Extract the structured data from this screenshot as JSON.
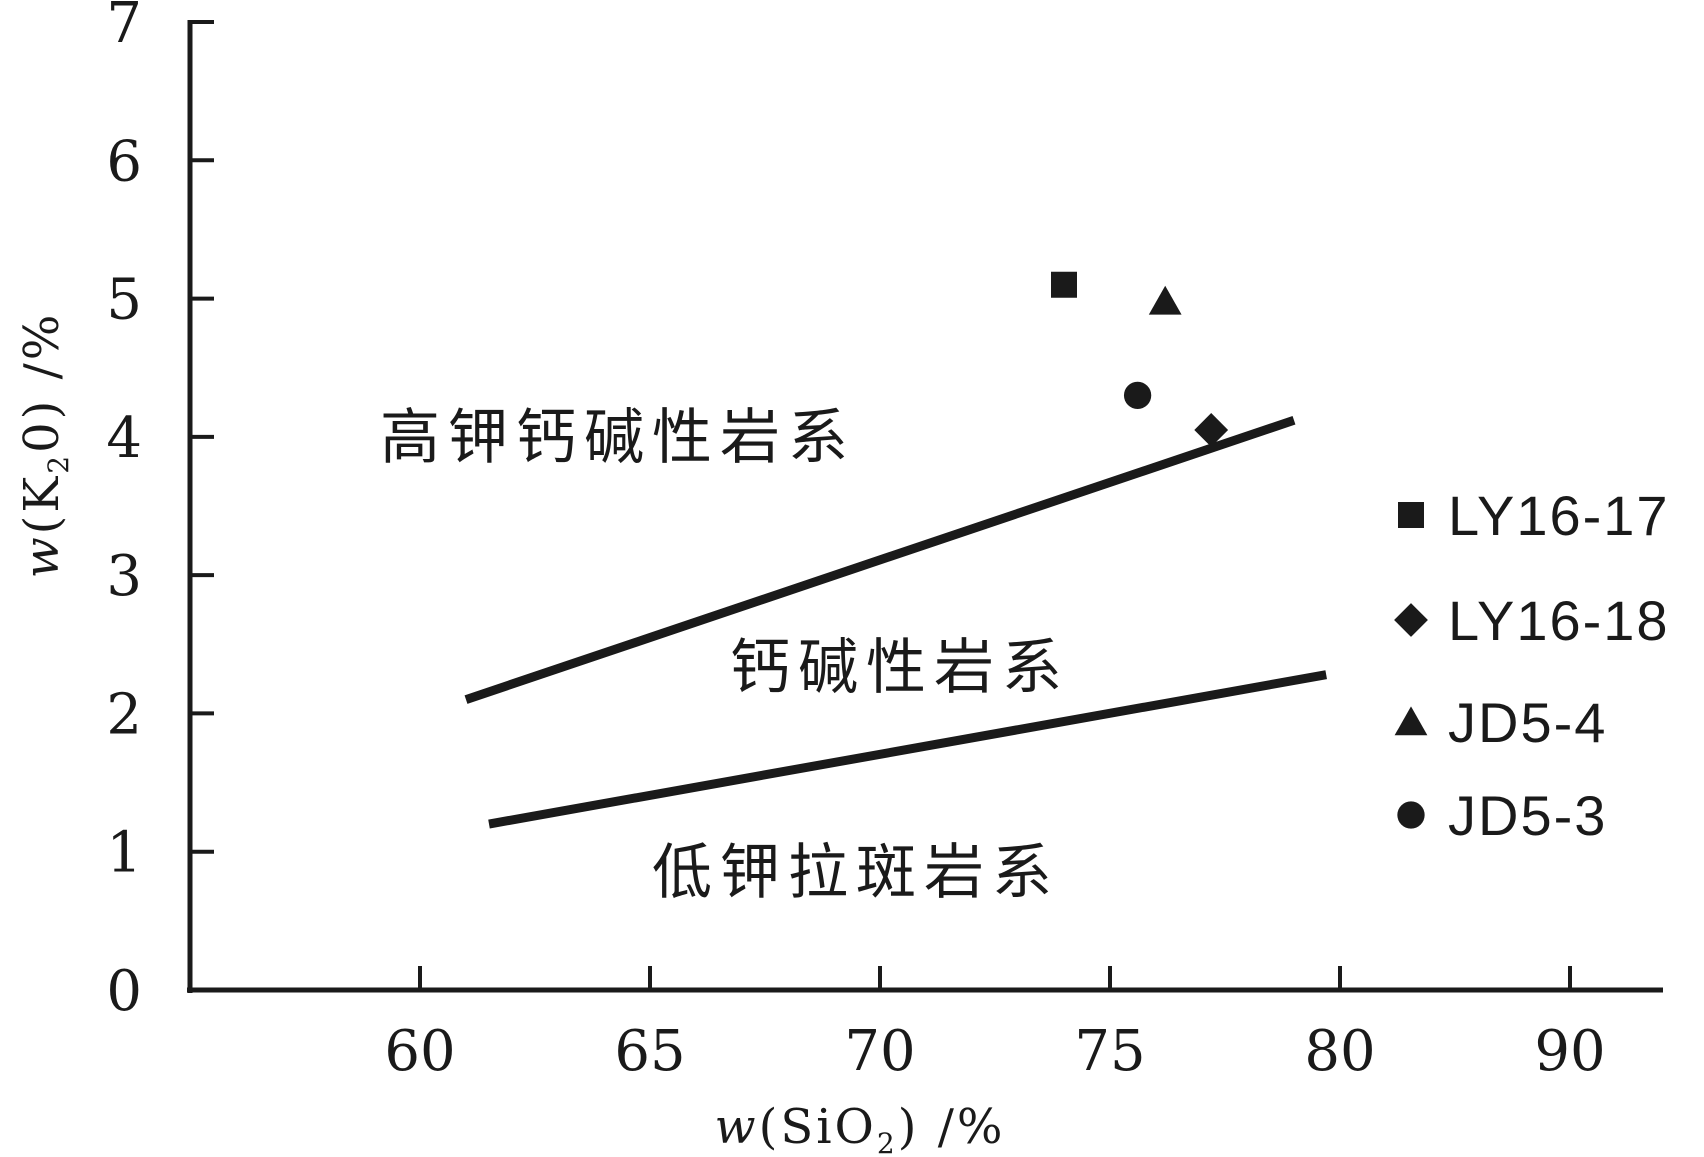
{
  "chart_data": {
    "type": "scatter",
    "xlabel": {
      "pre": "w",
      "mid": "(SiO",
      "sub": "2",
      "post": ") /%"
    },
    "ylabel": {
      "pre": "w",
      "mid": "(K",
      "sub": "2",
      "post": "0) /%"
    },
    "xticks": [
      60,
      65,
      70,
      75,
      80,
      90
    ],
    "yticks": [
      0,
      1,
      2,
      3,
      4,
      5,
      6,
      7
    ],
    "ylim": [
      0,
      7
    ],
    "grid": false,
    "legend_position": "right",
    "boundary_lines": [
      {
        "points": [
          [
            61.0,
            2.1
          ],
          [
            79.0,
            4.12
          ]
        ]
      },
      {
        "points": [
          [
            61.5,
            1.2
          ],
          [
            79.7,
            2.28
          ]
        ]
      }
    ],
    "region_labels": [
      "高钾钙碱性岩系",
      "钙碱性岩系",
      "低钾拉斑岩系"
    ],
    "series": [
      {
        "name": "LY16-17",
        "marker": "square",
        "points": [
          [
            74.0,
            5.1
          ]
        ]
      },
      {
        "name": "LY16-18",
        "marker": "diamond",
        "points": [
          [
            77.2,
            4.05
          ]
        ]
      },
      {
        "name": "JD5-4",
        "marker": "triangle",
        "points": [
          [
            76.2,
            4.98
          ]
        ]
      },
      {
        "name": "JD5-3",
        "marker": "circle",
        "points": [
          [
            75.6,
            4.3
          ]
        ]
      }
    ],
    "color": "#1a1a1a"
  }
}
